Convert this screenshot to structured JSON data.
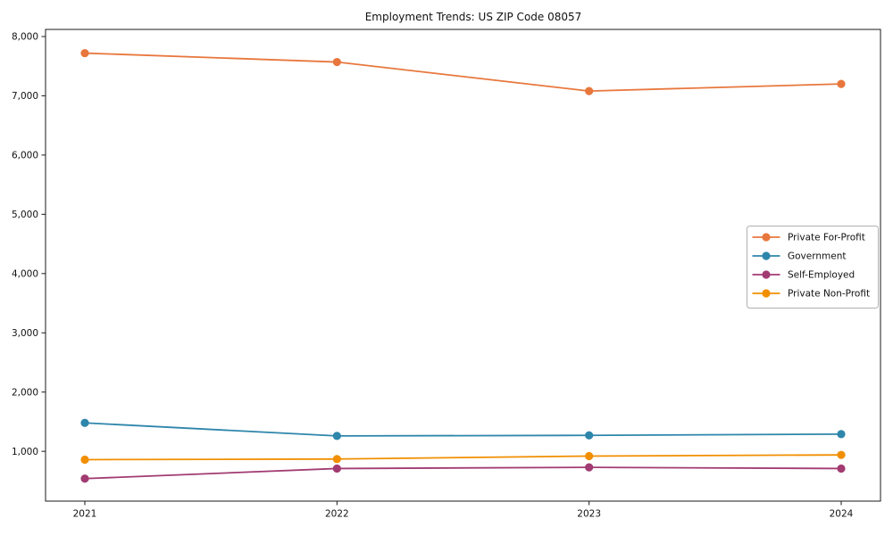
{
  "chart_data": {
    "type": "line",
    "title": "Employment Trends: US ZIP Code 08057",
    "xlabel": "",
    "ylabel": "",
    "categories": [
      "2021",
      "2022",
      "2023",
      "2024"
    ],
    "series": [
      {
        "name": "Private For-Profit",
        "color": "#e8773d",
        "values": [
          7720,
          7570,
          7080,
          7200
        ]
      },
      {
        "name": "Government",
        "color": "#2e86ab",
        "values": [
          1480,
          1260,
          1270,
          1290
        ]
      },
      {
        "name": "Self-Employed",
        "color": "#a23b72",
        "values": [
          540,
          710,
          730,
          710
        ]
      },
      {
        "name": "Private Non-Profit",
        "color": "#f18f01",
        "values": [
          860,
          870,
          920,
          940
        ]
      }
    ],
    "yticks": [
      1000,
      2000,
      3000,
      4000,
      5000,
      6000,
      7000,
      8000
    ],
    "ylim": [
      160,
      8120
    ],
    "grid": false,
    "legend_position": "right-middle",
    "plot_border_color": "#1a1a1a",
    "legend_border_color": "#b0b0b0",
    "background_color": "#ffffff"
  }
}
